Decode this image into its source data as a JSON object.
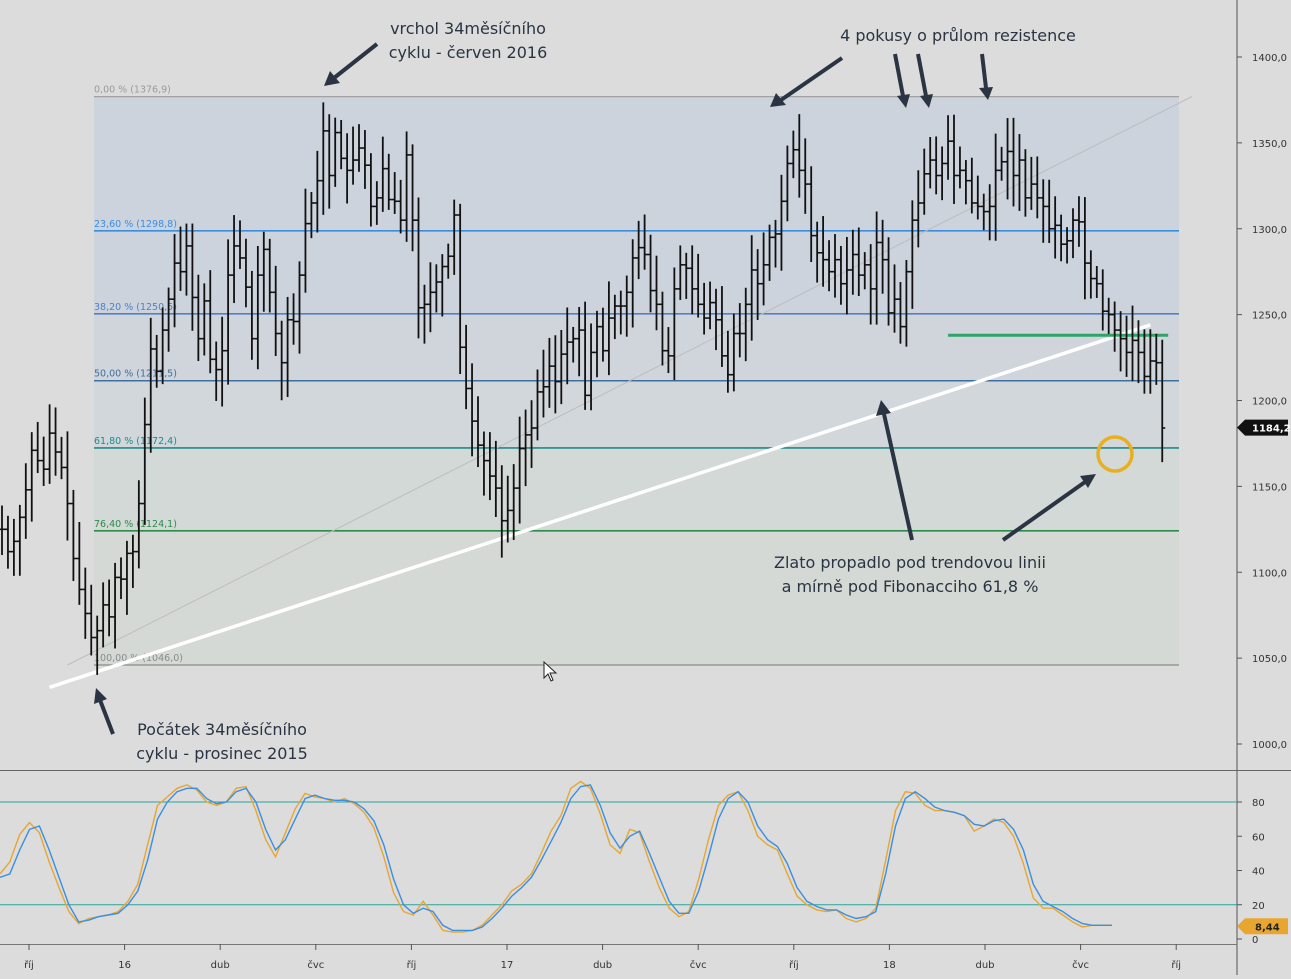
{
  "chart_data": [
    {
      "type": "ohlc",
      "ylim": [
        990,
        1420
      ],
      "y_ticks": [
        "1000,0",
        "1050,0",
        "1100,0",
        "1150,0",
        "1200,0",
        "1250,0",
        "1300,0",
        "1350,0",
        "1400,0"
      ],
      "y_tick_values": [
        1000,
        1050,
        1100,
        1150,
        1200,
        1250,
        1300,
        1350,
        1400
      ],
      "current_price_label": "1184,2",
      "current_price": 1184.2,
      "fibonacci_levels": [
        {
          "label": "0,00 % (1376,9)",
          "value": 1376.9,
          "color": "#9a9a9a"
        },
        {
          "label": "23,60 % (1298,8)",
          "value": 1298.8,
          "color": "#3a8ee0"
        },
        {
          "label": "38,20 % (1250,5)",
          "value": 1250.5,
          "color": "#4f82c4"
        },
        {
          "label": "50,00 % (1211,5)",
          "value": 1211.5,
          "color": "#3f6f9e"
        },
        {
          "label": "61,80 % (1172,4)",
          "value": 1172.4,
          "color": "#1f8a8a"
        },
        {
          "label": "76,40 % (1124,1)",
          "value": 1124.1,
          "color": "#2e8a4a"
        },
        {
          "label": "100,00 % (1046,0)",
          "value": 1046.0,
          "color": "#8a8a8a"
        }
      ],
      "weekly_closes": [
        1125,
        1112,
        1118,
        1132,
        1148,
        1171,
        1165,
        1160,
        1181,
        1170,
        1161,
        1140,
        1108,
        1090,
        1076,
        1062,
        1066,
        1081,
        1074,
        1097,
        1096,
        1111,
        1112,
        1140,
        1186,
        1230,
        1217,
        1241,
        1259,
        1280,
        1275,
        1290,
        1260,
        1236,
        1258,
        1224,
        1218,
        1229,
        1273,
        1290,
        1283,
        1266,
        1236,
        1273,
        1288,
        1263,
        1239,
        1222,
        1247,
        1246,
        1273,
        1303,
        1315,
        1328,
        1357,
        1331,
        1356,
        1341,
        1334,
        1340,
        1347,
        1337,
        1313,
        1318,
        1335,
        1317,
        1316,
        1305,
        1343,
        1305,
        1254,
        1256,
        1263,
        1269,
        1278,
        1284,
        1308,
        1231,
        1207,
        1188,
        1174,
        1165,
        1156,
        1149,
        1130,
        1136,
        1149,
        1172,
        1180,
        1184,
        1205,
        1208,
        1220,
        1211,
        1227,
        1234,
        1236,
        1241,
        1203,
        1228,
        1243,
        1229,
        1248,
        1255,
        1255,
        1263,
        1283,
        1289,
        1285,
        1264,
        1256,
        1229,
        1226,
        1265,
        1279,
        1277,
        1265,
        1256,
        1248,
        1257,
        1247,
        1226,
        1215,
        1239,
        1239,
        1256,
        1276,
        1268,
        1279,
        1295,
        1297,
        1316,
        1338,
        1346,
        1334,
        1326,
        1296,
        1286,
        1282,
        1275,
        1282,
        1268,
        1276,
        1285,
        1273,
        1279,
        1265,
        1292,
        1282,
        1251,
        1259,
        1243,
        1275,
        1305,
        1315,
        1332,
        1340,
        1331,
        1338,
        1351,
        1331,
        1334,
        1328,
        1315,
        1313,
        1310,
        1313,
        1334,
        1339,
        1345,
        1331,
        1340,
        1318,
        1326,
        1318,
        1313,
        1300,
        1302,
        1291,
        1293,
        1305,
        1304,
        1280,
        1271,
        1268,
        1252,
        1250,
        1241,
        1236,
        1228,
        1235,
        1228,
        1214,
        1223,
        1222,
        1184
      ],
      "trendlines": [
        {
          "from": [
            11,
            1046
          ],
          "to": [
            200,
            1377
          ],
          "color": "#bdbdbd"
        },
        {
          "from": [
            8,
            1040
          ],
          "to": [
            193,
            1244
          ],
          "color": "#ffffff"
        }
      ],
      "horizontal_segments": [
        {
          "from_index": 159,
          "to_index": 196,
          "value": 1238,
          "color": "#2fa36a"
        }
      ],
      "annotations": [
        {
          "text_lines": [
            "vrchol 34měsíčního",
            "cyklu - červen 2016"
          ]
        },
        {
          "text_lines": [
            "4 pokusy o průlom rezistence"
          ]
        },
        {
          "text_lines": [
            "Zlato propadlo pod trendovou linii",
            "a mírně pod Fibonacciho 61,8 %"
          ]
        },
        {
          "text_lines": [
            "Počátek 34měsíčního",
            "cyklu - prosinec 2015"
          ]
        }
      ]
    },
    {
      "type": "line",
      "ylim": [
        0,
        100
      ],
      "y_ticks": [
        "0",
        "20",
        "40",
        "60",
        "80"
      ],
      "y_tick_values": [
        0,
        20,
        40,
        60,
        80
      ],
      "reference_lines": [
        80,
        20
      ],
      "current_value_label": "8,44",
      "series": [
        {
          "color": "#e8a630",
          "values": [
            38,
            45,
            61,
            68,
            62,
            45,
            30,
            16,
            9,
            12,
            13,
            14,
            16,
            22,
            32,
            55,
            78,
            83,
            88,
            90,
            87,
            80,
            78,
            80,
            88,
            89,
            75,
            58,
            48,
            62,
            76,
            85,
            83,
            82,
            80,
            82,
            79,
            74,
            65,
            48,
            27,
            16,
            14,
            22,
            14,
            5,
            4,
            4,
            5,
            8,
            14,
            20,
            28,
            32,
            38,
            50,
            63,
            72,
            88,
            92,
            88,
            73,
            55,
            50,
            64,
            62,
            45,
            30,
            18,
            13,
            16,
            35,
            58,
            78,
            84,
            86,
            75,
            60,
            55,
            52,
            38,
            25,
            20,
            17,
            16,
            17,
            12,
            10,
            12,
            18,
            46,
            75,
            86,
            85,
            78,
            75,
            75,
            74,
            72,
            63,
            66,
            70,
            68,
            60,
            44,
            24,
            18,
            18,
            14,
            10,
            7,
            8,
            8,
            8
          ]
        },
        {
          "color": "#3b8ee0",
          "values": [
            36,
            38,
            52,
            64,
            66,
            52,
            36,
            20,
            10,
            11,
            13,
            14,
            15,
            20,
            28,
            46,
            70,
            80,
            86,
            88,
            88,
            82,
            79,
            80,
            86,
            88,
            80,
            64,
            52,
            58,
            70,
            82,
            84,
            82,
            81,
            81,
            80,
            76,
            69,
            55,
            35,
            20,
            15,
            18,
            16,
            8,
            5,
            5,
            5,
            7,
            12,
            18,
            25,
            30,
            36,
            46,
            57,
            68,
            82,
            89,
            90,
            78,
            62,
            53,
            60,
            63,
            50,
            36,
            22,
            15,
            15,
            28,
            48,
            70,
            82,
            86,
            80,
            66,
            58,
            54,
            44,
            30,
            22,
            19,
            17,
            17,
            14,
            12,
            13,
            16,
            38,
            66,
            82,
            86,
            82,
            77,
            75,
            74,
            72,
            67,
            66,
            69,
            70,
            64,
            52,
            32,
            22,
            19,
            16,
            12,
            9,
            8,
            8,
            8
          ]
        }
      ]
    }
  ],
  "x_axis": {
    "labels": [
      "říj",
      "16",
      "dub",
      "čvc",
      "říj",
      "17",
      "dub",
      "čvc",
      "říj",
      "18",
      "dub",
      "čvc",
      "říj"
    ]
  }
}
